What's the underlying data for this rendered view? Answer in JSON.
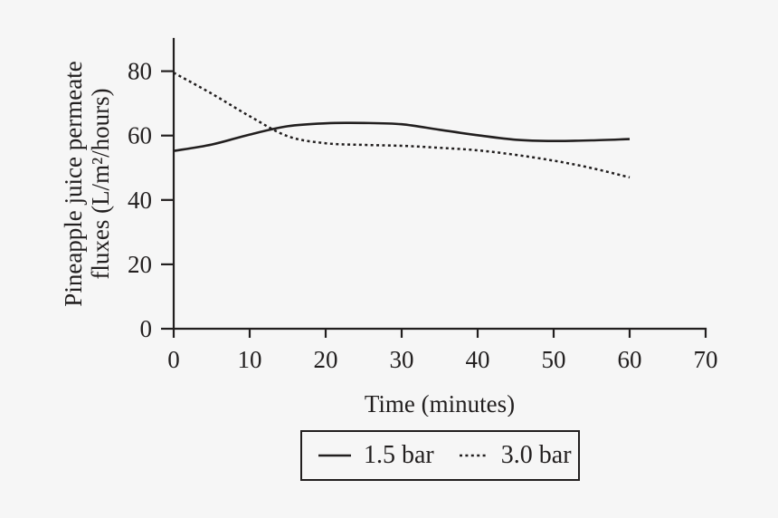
{
  "figure": {
    "background_color": "#f6f6f6",
    "ink_color": "#221f1f"
  },
  "chart_data": {
    "type": "line",
    "title": "",
    "xlabel": "Time (minutes)",
    "ylabel_lines": [
      "Pineapple juice permeate",
      "fluxes (L/m²/hours)"
    ],
    "xlim": [
      0,
      70
    ],
    "ylim": [
      0,
      90
    ],
    "x_ticks": [
      0,
      10,
      20,
      30,
      40,
      50,
      60,
      70
    ],
    "y_ticks": [
      0,
      20,
      40,
      60,
      80
    ],
    "grid": false,
    "x": [
      0,
      5,
      10,
      15,
      20,
      25,
      30,
      35,
      40,
      45,
      50,
      55,
      60
    ],
    "series": [
      {
        "name": "1.5 bar",
        "style": "solid",
        "values": [
          55.2,
          57.2,
          60.3,
          62.9,
          63.8,
          63.9,
          63.5,
          61.8,
          60.1,
          58.7,
          58.3,
          58.5,
          58.9
        ]
      },
      {
        "name": "3.0 bar",
        "style": "dotted",
        "values": [
          79.5,
          73.0,
          66.0,
          59.8,
          57.6,
          57.1,
          56.8,
          56.2,
          55.4,
          54.0,
          52.2,
          49.9,
          47.0
        ]
      }
    ],
    "legend": {
      "position": "bottom-center",
      "border": true,
      "items": [
        {
          "label": "1.5 bar",
          "style": "solid"
        },
        {
          "label": "3.0 bar",
          "style": "dotted"
        }
      ]
    }
  }
}
